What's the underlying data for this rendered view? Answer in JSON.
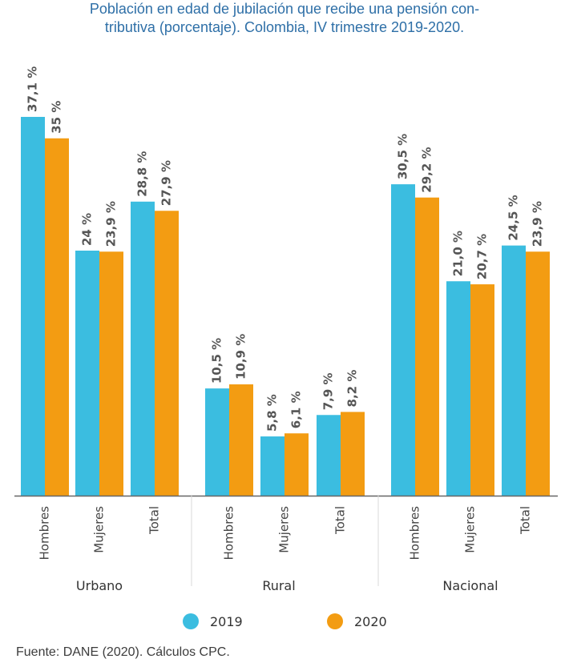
{
  "chart_data": {
    "type": "bar",
    "title": [
      "Población en edad de jubilación que recibe una pensión con-",
      "tributiva (porcentaje). Colombia, IV trimestre 2019-2020."
    ],
    "groups": [
      {
        "name": "Urbano",
        "categories": [
          "Hombres",
          "Mujeres",
          "Total"
        ]
      },
      {
        "name": "Rural",
        "categories": [
          "Hombres",
          "Mujeres",
          "Total"
        ]
      },
      {
        "name": "Nacional",
        "categories": [
          "Hombres",
          "Mujeres",
          "Total"
        ]
      }
    ],
    "series": [
      {
        "name": "2019",
        "color": "#3bbde0",
        "values": [
          37.1,
          24,
          28.8,
          10.5,
          5.8,
          7.9,
          30.5,
          21.0,
          24.5
        ],
        "labels": [
          "37,1 %",
          "24 %",
          "28,8 %",
          "10,5 %",
          "5,8 %",
          "7,9 %",
          "30,5 %",
          "21,0 %",
          "24,5 %"
        ]
      },
      {
        "name": "2020",
        "color": "#f39c12",
        "values": [
          35,
          23.9,
          27.9,
          10.9,
          6.1,
          8.2,
          29.2,
          20.7,
          23.9
        ],
        "labels": [
          "35 %",
          "23,9 %",
          "27,9 %",
          "10,9 %",
          "6,1 %",
          "8,2 %",
          "29,2 %",
          "20,7 %",
          "23,9 %"
        ]
      }
    ],
    "ylim": [
      0,
      40
    ],
    "grid": false,
    "legend_position": "bottom"
  },
  "source": "Fuente: DANE (2020). Cálculos CPC."
}
